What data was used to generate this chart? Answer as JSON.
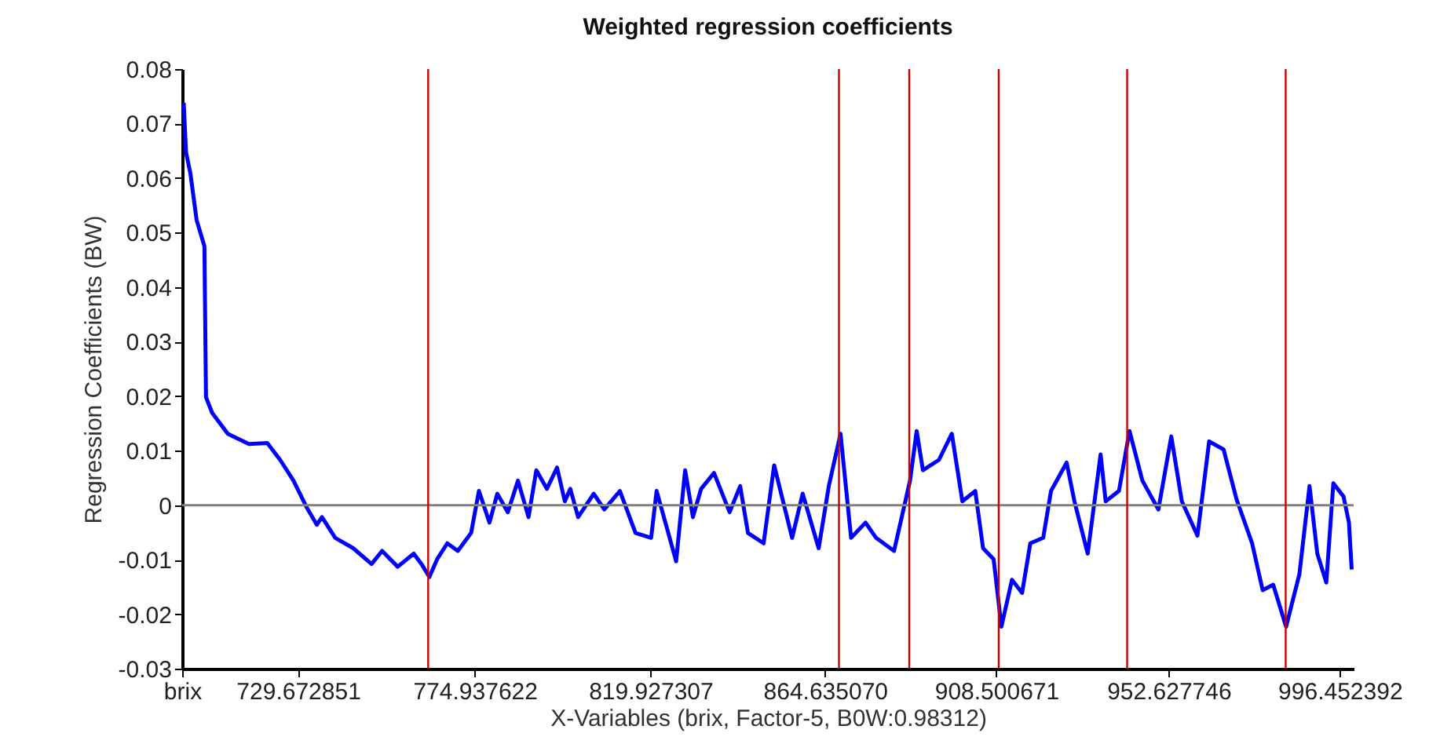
{
  "chart_data": {
    "type": "line",
    "title": "Weighted regression coefficients",
    "xlabel": "X-Variables (brix, Factor-5, B0W:0.98312)",
    "ylabel": "Regression Coefficients (BW)",
    "x": [
      700.4,
      701.0,
      702.1,
      703.7,
      705.7,
      706.1,
      707.7,
      711.7,
      717.1,
      721.8,
      725.1,
      728.5,
      731.8,
      734.5,
      735.8,
      739.2,
      743.8,
      748.5,
      751.2,
      755.2,
      759.3,
      761.3,
      763.3,
      765.3,
      767.9,
      770.6,
      774.0,
      776.0,
      778.7,
      780.7,
      783.4,
      786.0,
      788.7,
      790.7,
      793.4,
      796.0,
      798.0,
      799.4,
      801.4,
      805.4,
      808.1,
      812.1,
      816.1,
      820.1,
      821.5,
      824.1,
      826.5,
      828.8,
      830.8,
      832.9,
      836.2,
      840.2,
      842.9,
      844.9,
      848.9,
      851.6,
      856.2,
      858.9,
      863.0,
      865.6,
      868.6,
      871.3,
      875.0,
      877.7,
      882.3,
      886.4,
      888.1,
      889.7,
      893.8,
      897.1,
      899.8,
      903.1,
      905.1,
      907.8,
      909.8,
      912.5,
      915.1,
      917.2,
      920.5,
      922.5,
      926.5,
      928.5,
      931.9,
      935.2,
      936.5,
      939.9,
      942.6,
      945.9,
      950.0,
      953.3,
      956.0,
      960.0,
      963.0,
      966.7,
      970.0,
      974.0,
      976.7,
      979.4,
      982.7,
      986.1,
      988.7,
      990.7,
      993.0,
      994.8,
      997.4,
      998.8,
      999.5
    ],
    "series": [
      {
        "color": "#0000ff",
        "values": [
          0.0738,
          0.0647,
          0.0609,
          0.0523,
          0.0475,
          0.0198,
          0.0169,
          0.0131,
          0.0112,
          0.0114,
          0.0083,
          0.0045,
          -0.0003,
          -0.0036,
          -0.0022,
          -0.006,
          -0.0079,
          -0.0108,
          -0.0084,
          -0.0113,
          -0.0089,
          -0.0108,
          -0.0132,
          -0.0099,
          -0.007,
          -0.0084,
          -0.0051,
          0.0026,
          -0.0032,
          0.0021,
          -0.0013,
          0.0045,
          -0.0022,
          0.0064,
          0.003,
          0.0069,
          0.0007,
          0.003,
          -0.0022,
          0.0021,
          -0.0008,
          0.0026,
          -0.0051,
          -0.006,
          0.0026,
          -0.0041,
          -0.0103,
          0.0064,
          -0.0022,
          0.003,
          0.0059,
          -0.0013,
          0.0035,
          -0.0051,
          -0.007,
          0.0073,
          -0.006,
          0.0021,
          -0.0079,
          0.0035,
          0.0131,
          -0.006,
          -0.0032,
          -0.006,
          -0.0084,
          0.0045,
          0.0136,
          0.0064,
          0.0083,
          0.0131,
          0.0007,
          0.0026,
          -0.0079,
          -0.0099,
          -0.0223,
          -0.0137,
          -0.0161,
          -0.007,
          -0.006,
          0.0026,
          0.0078,
          0.0007,
          -0.0089,
          0.0093,
          0.0007,
          0.0026,
          0.0136,
          0.0045,
          -0.0008,
          0.0126,
          0.0007,
          -0.0056,
          0.0117,
          0.0102,
          0.0011,
          -0.007,
          -0.0156,
          -0.0146,
          -0.0223,
          -0.0127,
          0.0035,
          -0.0089,
          -0.0142,
          0.004,
          0.0016,
          -0.0032,
          -0.0118
        ]
      }
    ],
    "xlim": [
      700,
      1000
    ],
    "xticks": [
      {
        "value": 700,
        "label": "brix"
      },
      729.672851,
      774.937622,
      819.927307,
      {
        "value": 864.63507,
        "label": "864.635070"
      },
      908.500671,
      952.627746,
      996.452392
    ],
    "ylim": [
      -0.03,
      0.08
    ],
    "yticks": [
      -0.03,
      -0.02,
      -0.01,
      0,
      0.01,
      0.02,
      0.03,
      0.04,
      0.05,
      0.06,
      0.07,
      0.08
    ],
    "ref_lines": [
      {
        "axis": "y",
        "value": 0,
        "color": "#808080"
      },
      {
        "axis": "x",
        "value": 763.0,
        "color": "#cc0000"
      },
      {
        "axis": "x",
        "value": 868.2,
        "color": "#cc0000"
      },
      {
        "axis": "x",
        "value": 886.2,
        "color": "#cc0000"
      },
      {
        "axis": "x",
        "value": 909.1,
        "color": "#cc0000"
      },
      {
        "axis": "x",
        "value": 942.0,
        "color": "#cc0000"
      },
      {
        "axis": "x",
        "value": 982.6,
        "color": "#cc0000"
      }
    ]
  }
}
